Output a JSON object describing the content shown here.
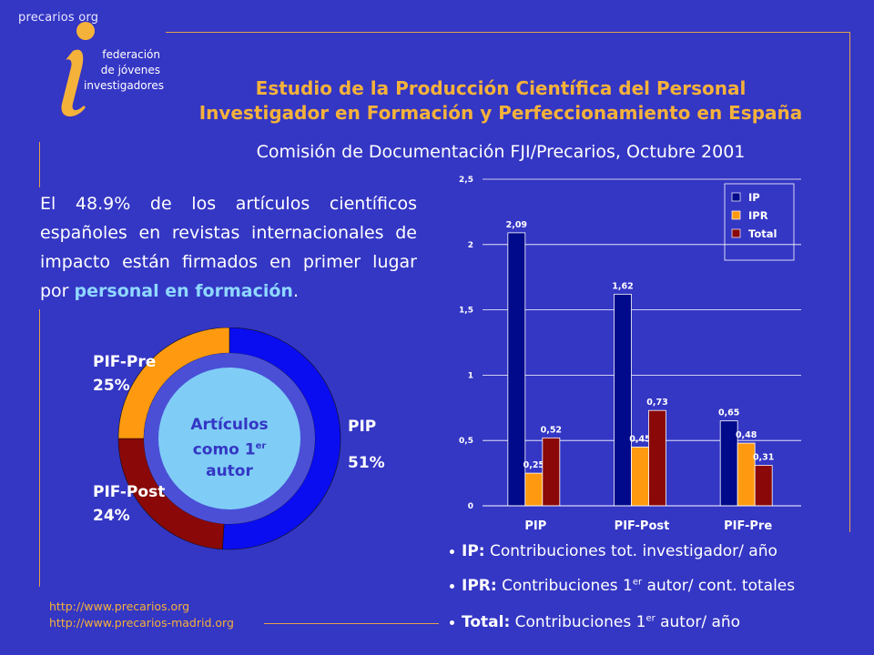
{
  "logo": {
    "top_text": "precarios  org",
    "org_lines": [
      "federación",
      "de jóvenes",
      "investigadores"
    ]
  },
  "header": {
    "title_line1": "Estudio de la Producción Científica del Personal",
    "title_line2": "Investigador en Formación y Perfeccionamiento en España",
    "subtitle": "Comisión de Documentación FJI/Precarios, Octubre 2001"
  },
  "intro": {
    "text": "El 48.9% de los artículos científicos españoles en revistas internacionales de impacto están firmados en primer lugar por ",
    "highlight": "personal en formación",
    "end": "."
  },
  "donut": {
    "center_line1": "Artículos",
    "center_line2_base": "como 1",
    "center_line2_sup": "er",
    "center_line3": "autor",
    "slices": [
      {
        "label": "PIP",
        "pct_label": "51%",
        "value": 51,
        "color": "#0a0df0"
      },
      {
        "label": "PIF-Post",
        "pct_label": "24%",
        "value": 24,
        "color": "#8a0808"
      },
      {
        "label": "PIF-Pre",
        "pct_label": "25%",
        "value": 25,
        "color": "#ff9a10"
      }
    ]
  },
  "chart_data": {
    "type": "bar",
    "categories": [
      "PIP",
      "PIF-Post",
      "PIF-Pre"
    ],
    "series": [
      {
        "name": "IP",
        "values": [
          2.09,
          1.62,
          0.65
        ],
        "labels": [
          "2,09",
          "1,62",
          "0,65"
        ],
        "color": "#000a8a"
      },
      {
        "name": "IPR",
        "values": [
          0.25,
          0.45,
          0.48
        ],
        "labels": [
          "0,25",
          "0,45",
          "0,48"
        ],
        "color": "#ff9a10"
      },
      {
        "name": "Total",
        "values": [
          0.52,
          0.73,
          0.31
        ],
        "labels": [
          "0,52",
          "0,73",
          "0,31"
        ],
        "color": "#8a0808"
      }
    ],
    "ylim": [
      0,
      2.5
    ],
    "yticks": [
      0,
      0.5,
      1,
      1.5,
      2,
      2.5
    ],
    "ytick_labels": [
      "0",
      "0,5",
      "1",
      "1,5",
      "2",
      "2,5"
    ],
    "grid": true,
    "legend_position": "top-right"
  },
  "notes": [
    {
      "key": "IP:",
      "text": " Contribuciones tot. investigador/ año"
    },
    {
      "key": "IPR:",
      "text": " Contribuciones 1",
      "sup": "er",
      "tail": " autor/ cont. totales"
    },
    {
      "key": "Total:",
      "text": " Contribuciones 1",
      "sup": "er",
      "tail": " autor/ año"
    }
  ],
  "footer": {
    "url1": "http://www.precarios.org",
    "url2": "http://www.precarios-madrid.org"
  }
}
